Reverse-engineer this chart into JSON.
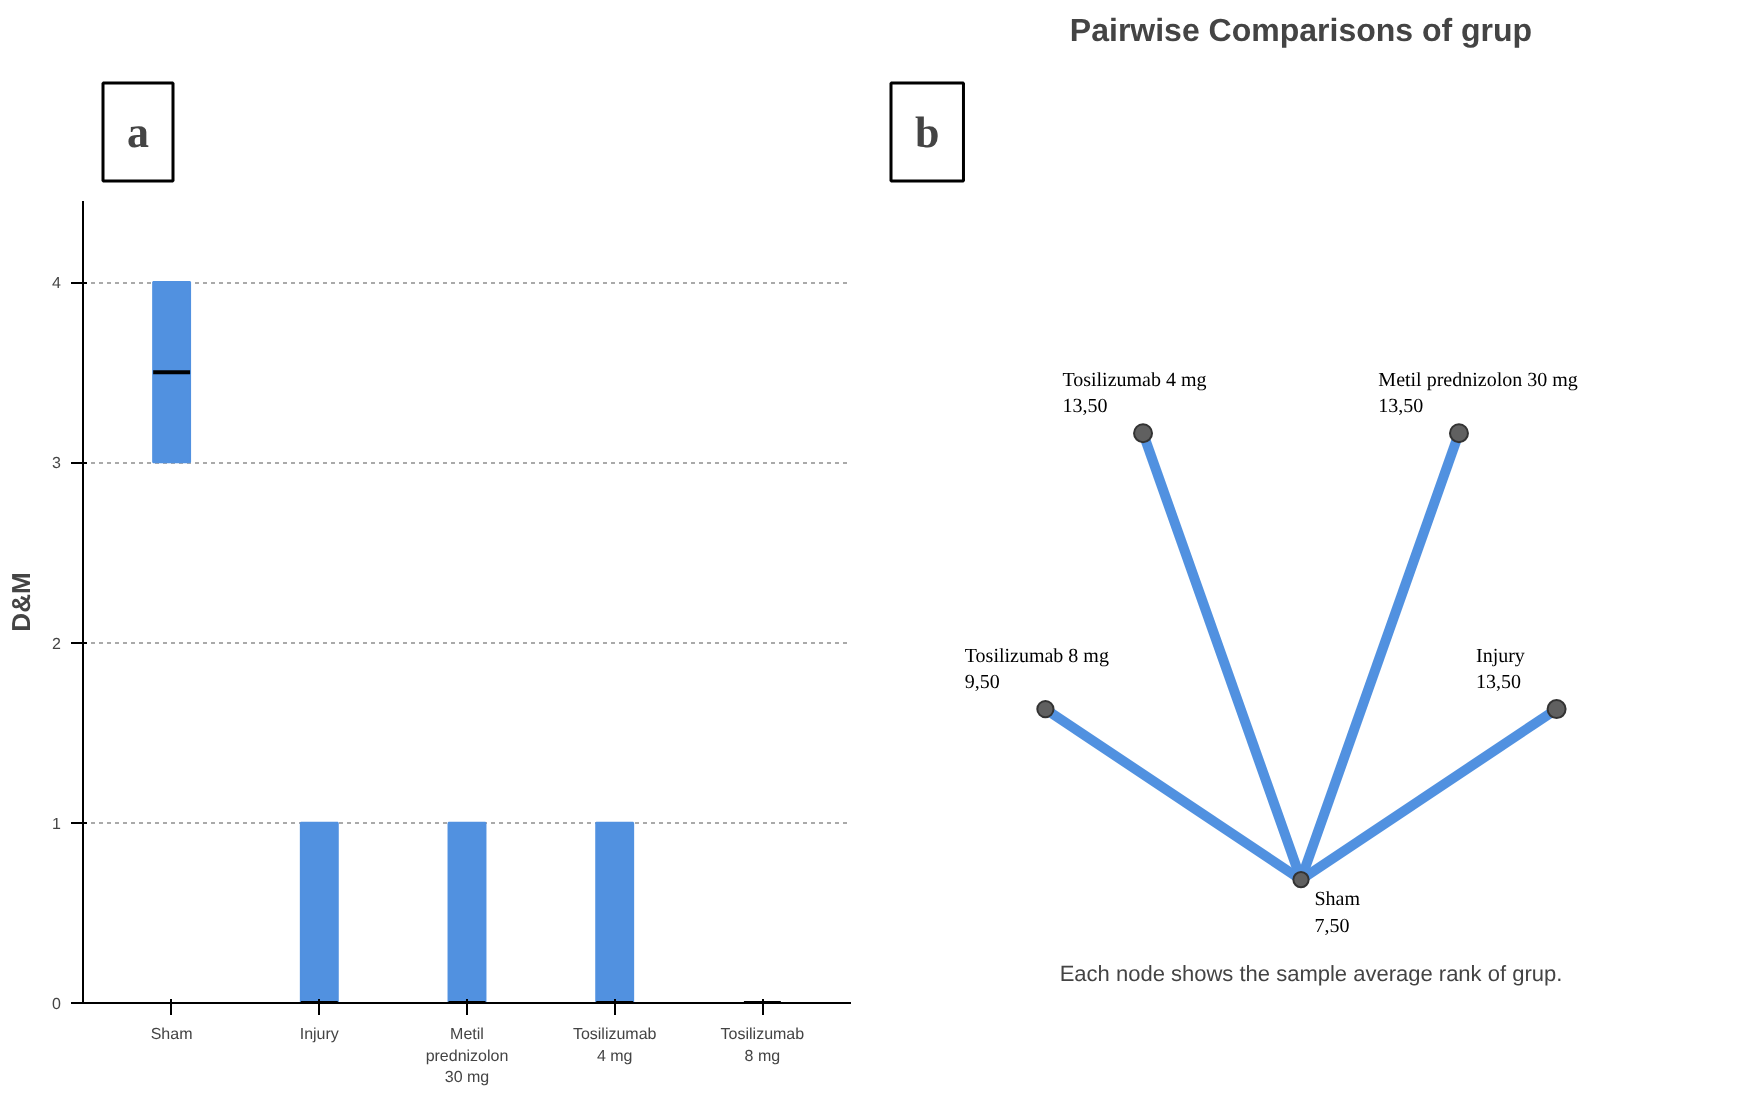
{
  "chart_data": [
    {
      "type": "box",
      "annotations": [
        "a"
      ],
      "ylabel": "D&M",
      "color": "#5191e0",
      "categories": [
        "Sham",
        "Injury",
        "Metil prednizolon 30 mg",
        "Tosilizumab 4 mg",
        "Tosilizumab 8 mg"
      ],
      "boxes": [
        {
          "low": 3,
          "q1": 3,
          "median": 3.5,
          "q3": 4,
          "high": 4
        },
        {
          "low": 0,
          "q1": 0,
          "median": 0,
          "q3": 1,
          "high": 1
        },
        {
          "low": 0,
          "q1": 0,
          "median": 0,
          "q3": 1,
          "high": 1
        },
        {
          "low": 0,
          "q1": 0,
          "median": 0,
          "q3": 1,
          "high": 1
        },
        {
          "low": 0,
          "q1": 0,
          "median": 0,
          "q3": 0,
          "high": 0
        }
      ],
      "ylim": [
        0,
        4.45
      ],
      "yticks": [
        0,
        1,
        2,
        3,
        4
      ],
      "grid": "y"
    },
    {
      "type": "other",
      "title": "Pairwise Comparisons of grup",
      "annotations": [
        "b",
        "Each node shows the sample average rank of grup."
      ],
      "color": "#5191e0",
      "categories": [
        "Sham",
        "Injury",
        "Metil prednizolon 30 mg",
        "Tosilizumab 4 mg",
        "Tosilizumab 8 mg"
      ],
      "values": [
        7.5,
        13.5,
        13.5,
        13.5,
        9.5
      ],
      "value_labels": [
        "7,50",
        "13,50",
        "13,50",
        "13,50",
        "9,50"
      ]
    }
  ]
}
